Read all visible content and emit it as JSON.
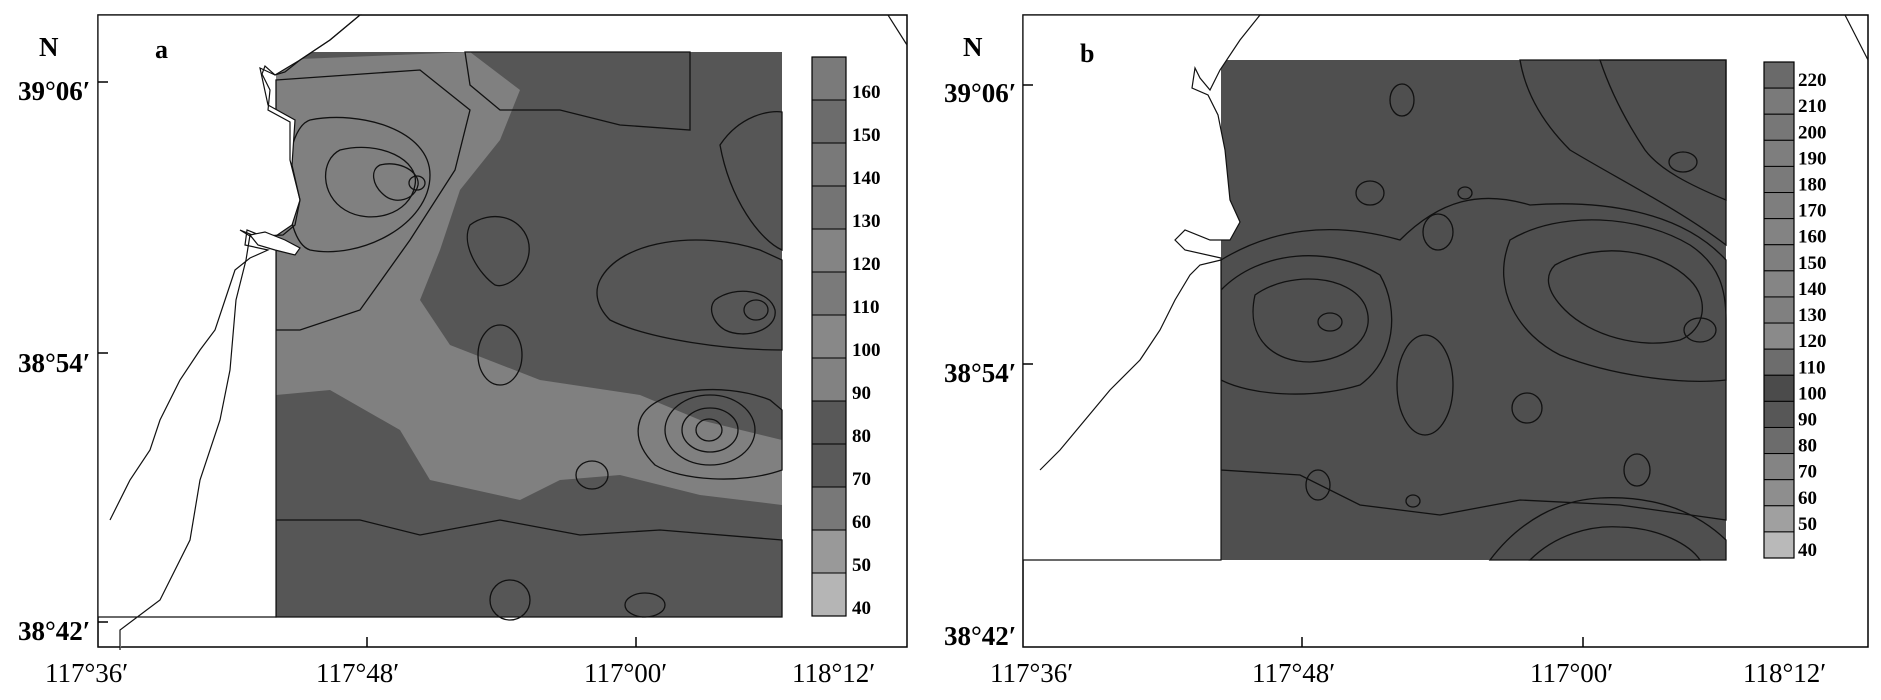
{
  "panels": [
    {
      "id": "a",
      "panel_label": "a",
      "north_label": "N",
      "lat_ticks": [
        "39°06′",
        "38°54′",
        "38°42′"
      ],
      "lon_ticks": [
        "117°36′",
        "117°48′",
        "117°00′",
        "118°12′"
      ],
      "colorbar_ticks": [
        "160",
        "150",
        "140",
        "130",
        "120",
        "110",
        "100",
        "90",
        "80",
        "70",
        "60",
        "50",
        "40"
      ],
      "colorbar_fills": [
        "#7a7a7a",
        "#6c6c6c",
        "#797979",
        "#747474",
        "#848484",
        "#7a7a7a",
        "#888888",
        "#828282",
        "#585858",
        "#5a5a5a",
        "#787878",
        "#999999",
        "#b5b5b5"
      ],
      "field_fill": "#565656"
    },
    {
      "id": "b",
      "panel_label": "b",
      "north_label": "N",
      "lat_ticks": [
        "39°06′",
        "38°54′",
        "38°42′"
      ],
      "lon_ticks": [
        "117°36′",
        "117°48′",
        "117°00′",
        "118°12′"
      ],
      "colorbar_ticks": [
        "220",
        "210",
        "200",
        "190",
        "180",
        "170",
        "160",
        "150",
        "140",
        "130",
        "120",
        "110",
        "100",
        "90",
        "80",
        "70",
        "60",
        "50",
        "40"
      ],
      "colorbar_fills": [
        "#6a6a6a",
        "#7a7a7a",
        "#777777",
        "#7e7e7e",
        "#7a7a7a",
        "#7e7e7e",
        "#838383",
        "#7f7f7f",
        "#858585",
        "#808080",
        "#8a8a8a",
        "#6d6d6d",
        "#4b4b4b",
        "#575757",
        "#6c6c6c",
        "#848484",
        "#8e8e8e",
        "#a0a0a0",
        "#b9b9b9"
      ],
      "field_fill": "#4f4f4f"
    }
  ],
  "colors": {
    "dark": "#4f4f4f",
    "mid": "#7f7f7f",
    "light": "#9c9c9c",
    "line": "#111111",
    "land": "#ffffff"
  }
}
